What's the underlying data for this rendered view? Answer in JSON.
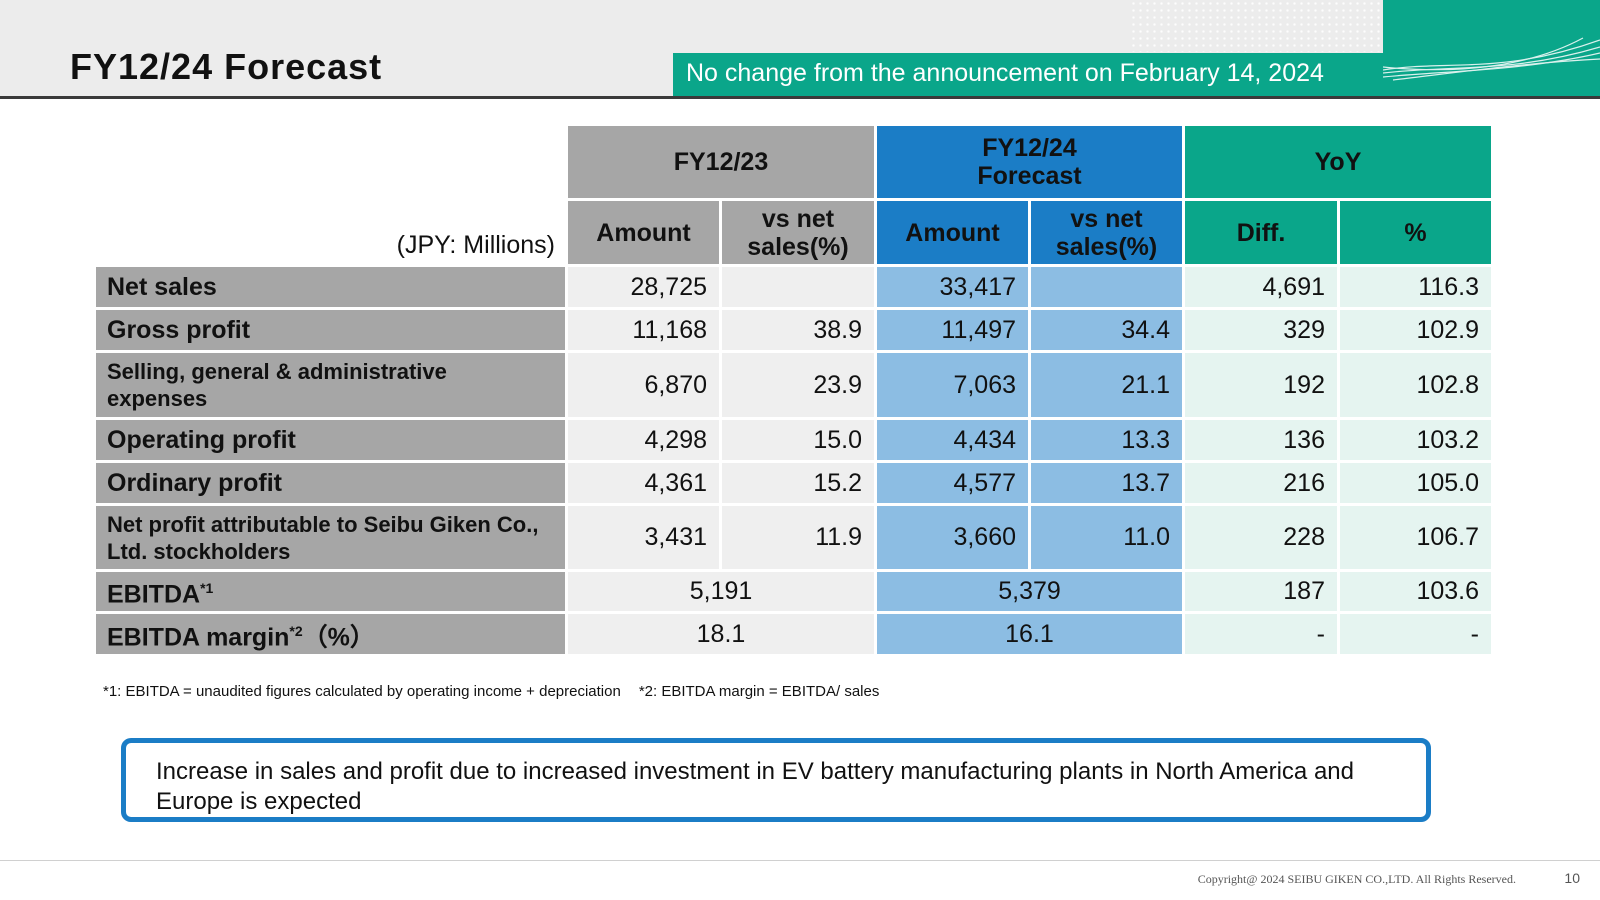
{
  "header": {
    "title": "FY12/24 Forecast",
    "banner": "No change from the announcement on February 14, 2024"
  },
  "table": {
    "unit_label": "(JPY: Millions)",
    "groups": [
      "FY12/23",
      "FY12/24 Forecast",
      "YoY"
    ],
    "subheaders": [
      "Amount",
      "vs net sales(%)",
      "Amount",
      "vs net sales(%)",
      "Diff.",
      "%"
    ],
    "rows": [
      {
        "label": "Net sales",
        "fy23_amount": "28,725",
        "fy23_ratio": "",
        "fy24_amount": "33,417",
        "fy24_ratio": "",
        "diff": "4,691",
        "pct": "116.3"
      },
      {
        "label": "Gross profit",
        "fy23_amount": "11,168",
        "fy23_ratio": "38.9",
        "fy24_amount": "11,497",
        "fy24_ratio": "34.4",
        "diff": "329",
        "pct": "102.9"
      },
      {
        "label": "Selling, general & administrative expenses",
        "fy23_amount": "6,870",
        "fy23_ratio": "23.9",
        "fy24_amount": "7,063",
        "fy24_ratio": "21.1",
        "diff": "192",
        "pct": "102.8"
      },
      {
        "label": "Operating profit",
        "fy23_amount": "4,298",
        "fy23_ratio": "15.0",
        "fy24_amount": "4,434",
        "fy24_ratio": "13.3",
        "diff": "136",
        "pct": "103.2"
      },
      {
        "label": "Ordinary profit",
        "fy23_amount": "4,361",
        "fy23_ratio": "15.2",
        "fy24_amount": "4,577",
        "fy24_ratio": "13.7",
        "diff": "216",
        "pct": "105.0"
      },
      {
        "label": "Net profit attributable to Seibu Giken Co., Ltd. stockholders",
        "fy23_amount": "3,431",
        "fy23_ratio": "11.9",
        "fy24_amount": "3,660",
        "fy24_ratio": "11.0",
        "diff": "228",
        "pct": "106.7"
      }
    ],
    "ebitda": {
      "label": "EBITDA",
      "sup": "*1",
      "fy23": "5,191",
      "fy24": "5,379",
      "diff": "187",
      "pct": "103.6"
    },
    "ebitda_margin": {
      "label": "EBITDA margin",
      "sup": "*2",
      "suffix": "（%）",
      "fy23": "18.1",
      "fy24": "16.1",
      "diff": "-",
      "pct": "-"
    }
  },
  "footnotes": [
    "*1: EBITDA = unaudited figures calculated by operating income + depreciation",
    "*2: EBITDA margin = EBITDA/ sales"
  ],
  "callout": "Increase in sales and profit due to increased investment in EV battery manufacturing plants in North America and Europe is expected",
  "footer": {
    "copyright": "Copyright@ 2024 SEIBU GIKEN CO.,LTD. All Rights Reserved.",
    "page": "10"
  },
  "colors": {
    "gray": "#a6a6a6",
    "blue": "#1b7dc6",
    "teal": "#0aa68a",
    "light_blue": "#8cbde3"
  }
}
